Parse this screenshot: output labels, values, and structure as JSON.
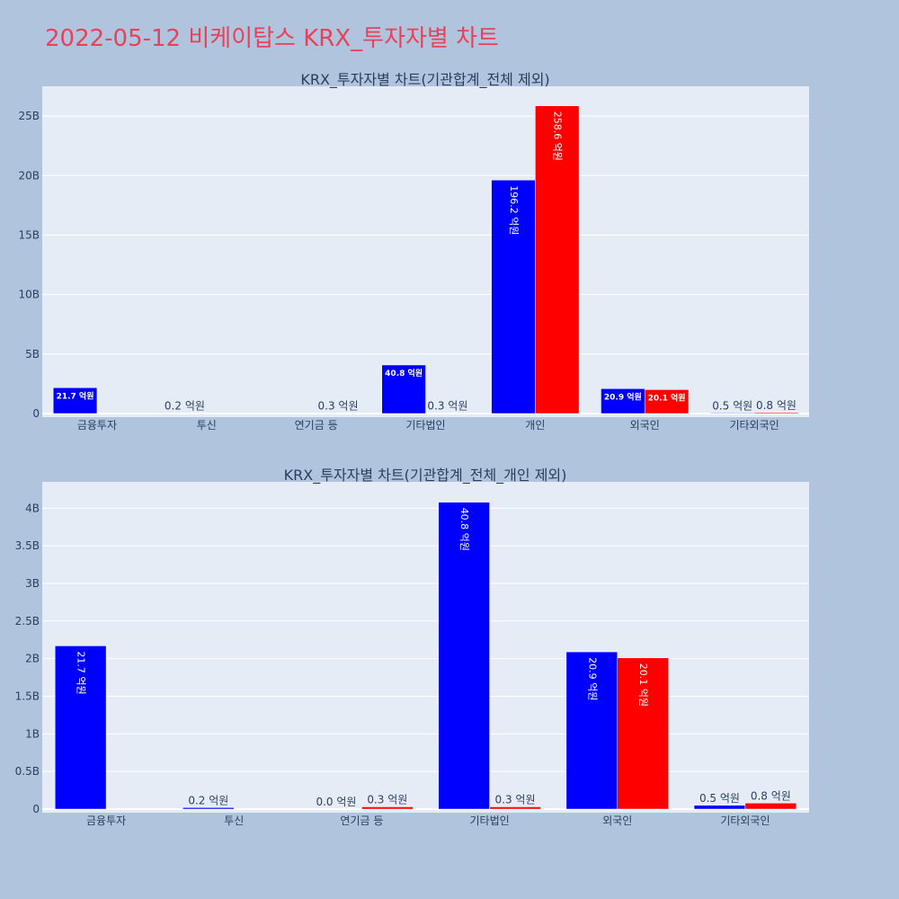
{
  "page_title": "2022-05-12 비케이탑스 KRX_투자자별 차트",
  "chart_data": [
    {
      "type": "bar",
      "title": "KRX_투자자별 차트(기관합계_전체 제외)",
      "categories": [
        "금융투자",
        "투신",
        "연기금 등",
        "기타법인",
        "개인",
        "외국인",
        "기타외국인"
      ],
      "series": [
        {
          "color": "#0000ff",
          "values": [
            2170000000,
            20000000,
            null,
            4080000000,
            19620000000,
            2090000000,
            50000000
          ],
          "labels": [
            "21.7 억원",
            "0.2 억원",
            "",
            "40.8 억원",
            "196.2 억원",
            "20.9 억원",
            "0.5 억원"
          ]
        },
        {
          "color": "#ff0000",
          "values": [
            null,
            null,
            30000000,
            30000000,
            25860000000,
            2010000000,
            80000000
          ],
          "labels": [
            "",
            "",
            "0.3 억원",
            "0.3 억원",
            "258.6 억원",
            "20.1 억원",
            "0.8 억원"
          ]
        }
      ],
      "ylim": [
        0,
        27500000000
      ],
      "yticks": [
        0,
        5000000000,
        10000000000,
        15000000000,
        20000000000,
        25000000000
      ],
      "ytick_labels": [
        "0",
        "5B",
        "10B",
        "15B",
        "20B",
        "25B"
      ],
      "grid": true
    },
    {
      "type": "bar",
      "title": "KRX_투자자별 차트(기관합계_전체_개인 제외)",
      "categories": [
        "금융투자",
        "투신",
        "연기금 등",
        "기타법인",
        "외국인",
        "기타외국인"
      ],
      "series": [
        {
          "color": "#0000ff",
          "values": [
            2170000000,
            20000000,
            0,
            4080000000,
            2090000000,
            50000000
          ],
          "labels": [
            "21.7 억원",
            "0.2 억원",
            "0.0 억원",
            "40.8 억원",
            "20.9 억원",
            "0.5 억원"
          ]
        },
        {
          "color": "#ff0000",
          "values": [
            null,
            null,
            30000000,
            30000000,
            2010000000,
            80000000
          ],
          "labels": [
            "",
            "",
            "0.3 억원",
            "0.3 억원",
            "20.1 억원",
            "0.8 억원"
          ]
        }
      ],
      "ylim": [
        0,
        4350000000
      ],
      "yticks": [
        0,
        500000000,
        1000000000,
        1500000000,
        2000000000,
        2500000000,
        3000000000,
        3500000000,
        4000000000
      ],
      "ytick_labels": [
        "0",
        "0.5B",
        "1B",
        "1.5B",
        "2B",
        "2.5B",
        "3B",
        "3.5B",
        "4B"
      ],
      "grid": true
    }
  ]
}
